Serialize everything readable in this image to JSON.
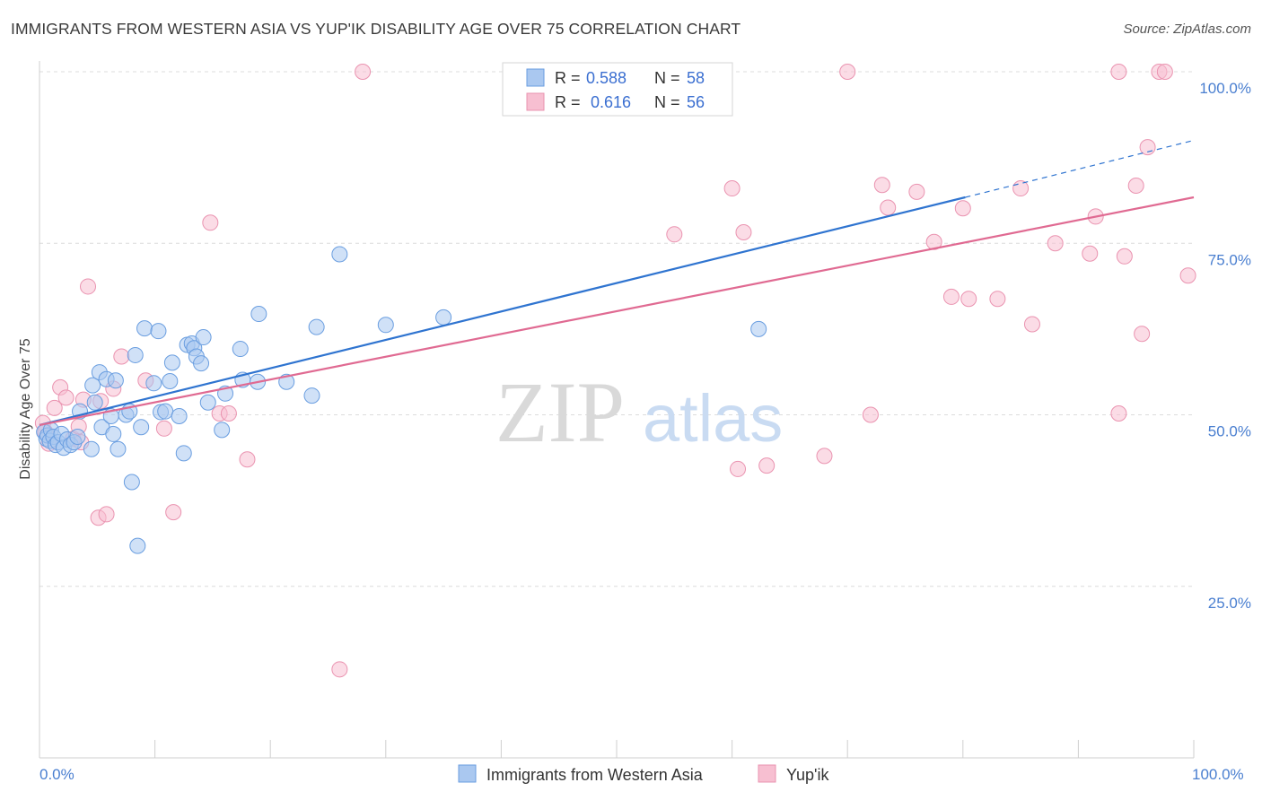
{
  "title": "IMMIGRANTS FROM WESTERN ASIA VS YUP'IK DISABILITY AGE OVER 75 CORRELATION CHART",
  "source": "Source: ZipAtlas.com",
  "watermark": {
    "zip": "ZIP",
    "atlas": "atlas"
  },
  "legend": {
    "rows": [
      {
        "r_label": "R =",
        "r_value": "0.588",
        "n_label": "N =",
        "n_value": "58"
      },
      {
        "r_label": "R =",
        "r_value": "0.616",
        "n_label": "N =",
        "n_value": "56"
      }
    ]
  },
  "colors": {
    "blue_fill": "#aac8f0",
    "blue_stroke": "#6a9ee0",
    "blue_line": "#2f74d0",
    "pink_fill": "#f7bfd1",
    "pink_stroke": "#ea93b0",
    "pink_line": "#e06a92",
    "tick_text": "#4a7fd0",
    "grid": "#dcdcdc"
  },
  "chart_data": {
    "type": "scatter",
    "xlabel": "",
    "ylabel": "Disability Age Over 75",
    "xlim": [
      0,
      100
    ],
    "ylim": [
      0,
      100
    ],
    "x_ticks": [
      "0.0%",
      "100.0%"
    ],
    "y_ticks": [
      {
        "value": 100,
        "label": "100.0%"
      },
      {
        "value": 75,
        "label": "75.0%"
      },
      {
        "value": 50,
        "label": "50.0%"
      },
      {
        "value": 25,
        "label": "25.0%"
      }
    ],
    "grid": true,
    "series": [
      {
        "name": "Immigrants from Western Asia",
        "color": "blue",
        "points": [
          [
            0.4,
            47.5
          ],
          [
            0.6,
            46.5
          ],
          [
            0.7,
            47.0
          ],
          [
            0.9,
            46.2
          ],
          [
            1.0,
            47.8
          ],
          [
            1.2,
            46.8
          ],
          [
            1.4,
            45.6
          ],
          [
            1.6,
            46.0
          ],
          [
            1.9,
            47.2
          ],
          [
            2.1,
            45.2
          ],
          [
            2.4,
            46.4
          ],
          [
            2.7,
            45.6
          ],
          [
            3.0,
            46.0
          ],
          [
            3.3,
            46.8
          ],
          [
            3.5,
            50.5
          ],
          [
            4.5,
            45.0
          ],
          [
            4.6,
            54.3
          ],
          [
            4.8,
            51.8
          ],
          [
            5.2,
            56.2
          ],
          [
            5.4,
            48.2
          ],
          [
            5.8,
            55.2
          ],
          [
            6.2,
            49.8
          ],
          [
            6.4,
            47.2
          ],
          [
            6.6,
            55.0
          ],
          [
            6.8,
            45.0
          ],
          [
            7.5,
            50.0
          ],
          [
            7.8,
            50.5
          ],
          [
            8.0,
            40.2
          ],
          [
            8.3,
            58.7
          ],
          [
            8.5,
            30.9
          ],
          [
            8.8,
            48.2
          ],
          [
            9.1,
            62.6
          ],
          [
            9.9,
            54.6
          ],
          [
            10.3,
            62.2
          ],
          [
            10.5,
            50.4
          ],
          [
            10.9,
            50.5
          ],
          [
            11.3,
            54.9
          ],
          [
            11.5,
            57.6
          ],
          [
            12.1,
            49.8
          ],
          [
            12.5,
            44.4
          ],
          [
            12.8,
            60.2
          ],
          [
            13.2,
            60.4
          ],
          [
            13.4,
            59.7
          ],
          [
            13.6,
            58.5
          ],
          [
            14.0,
            57.5
          ],
          [
            14.2,
            61.3
          ],
          [
            14.6,
            51.8
          ],
          [
            15.8,
            47.8
          ],
          [
            16.1,
            53.1
          ],
          [
            17.4,
            59.6
          ],
          [
            17.6,
            55.1
          ],
          [
            19.0,
            64.7
          ],
          [
            18.9,
            54.8
          ],
          [
            21.4,
            54.8
          ],
          [
            23.6,
            52.8
          ],
          [
            24.0,
            62.8
          ],
          [
            26.0,
            73.4
          ],
          [
            30.0,
            63.1
          ],
          [
            35.0,
            64.2
          ],
          [
            62.3,
            62.5
          ]
        ],
        "trend": {
          "x": [
            0,
            80.2
          ],
          "y": [
            48.5,
            81.7
          ],
          "dashed_to": {
            "x": 100,
            "y": 90.0
          }
        }
      },
      {
        "name": "Yup'ik",
        "color": "pink",
        "points": [
          [
            0.3,
            48.8
          ],
          [
            0.5,
            47.5
          ],
          [
            0.8,
            45.8
          ],
          [
            1.3,
            51.0
          ],
          [
            1.8,
            54.0
          ],
          [
            2.3,
            52.5
          ],
          [
            2.9,
            46.5
          ],
          [
            3.4,
            48.3
          ],
          [
            3.6,
            46.0
          ],
          [
            3.8,
            52.2
          ],
          [
            4.2,
            68.7
          ],
          [
            5.1,
            35.0
          ],
          [
            5.3,
            52.0
          ],
          [
            5.8,
            35.5
          ],
          [
            6.4,
            53.8
          ],
          [
            7.1,
            58.5
          ],
          [
            9.2,
            55.0
          ],
          [
            10.8,
            48.0
          ],
          [
            11.6,
            35.8
          ],
          [
            14.8,
            78.0
          ],
          [
            15.6,
            50.2
          ],
          [
            16.4,
            50.2
          ],
          [
            18.0,
            43.5
          ],
          [
            26.0,
            12.9
          ],
          [
            28.0,
            100.0
          ],
          [
            58.0,
            100.0
          ],
          [
            55.0,
            76.3
          ],
          [
            60.0,
            83.0
          ],
          [
            60.5,
            42.1
          ],
          [
            61.0,
            76.6
          ],
          [
            63.0,
            42.6
          ],
          [
            68.0,
            44.0
          ],
          [
            70.0,
            100.0
          ],
          [
            72.0,
            50.0
          ],
          [
            73.0,
            83.5
          ],
          [
            73.5,
            80.2
          ],
          [
            76.0,
            82.5
          ],
          [
            77.5,
            75.2
          ],
          [
            79.0,
            67.2
          ],
          [
            80.0,
            80.1
          ],
          [
            80.5,
            66.9
          ],
          [
            83.0,
            66.9
          ],
          [
            85.0,
            83.0
          ],
          [
            86.0,
            63.2
          ],
          [
            88.0,
            75.0
          ],
          [
            91.0,
            73.5
          ],
          [
            91.5,
            78.9
          ],
          [
            93.5,
            100.0
          ],
          [
            93.5,
            50.2
          ],
          [
            94.0,
            73.1
          ],
          [
            95.0,
            83.4
          ],
          [
            95.5,
            61.8
          ],
          [
            96.0,
            89.0
          ],
          [
            97.0,
            100.0
          ],
          [
            97.5,
            100.0
          ],
          [
            99.5,
            70.3
          ]
        ],
        "trend": {
          "x": [
            0,
            100
          ],
          "y": [
            48.5,
            81.7
          ]
        }
      }
    ]
  },
  "bottom_legend": [
    {
      "label": "Immigrants from Western Asia"
    },
    {
      "label": "Yup'ik"
    }
  ]
}
